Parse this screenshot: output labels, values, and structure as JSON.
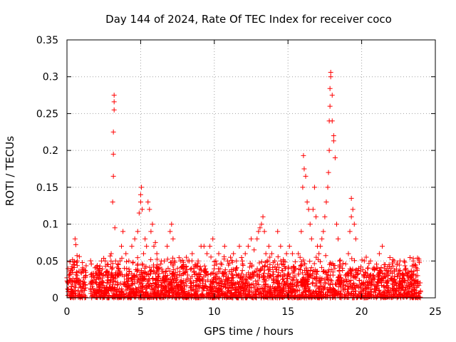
{
  "chart_data": {
    "type": "scatter",
    "title": "Day 144 of 2024, Rate Of TEC Index for receiver coco",
    "xlabel": "GPS time / hours",
    "ylabel": "ROTI / TECUs",
    "xlim": [
      0,
      25
    ],
    "ylim": [
      0,
      0.35
    ],
    "xticks": [
      "0",
      "5",
      "10",
      "15",
      "20",
      "25"
    ],
    "yticks": [
      "0",
      "0.05",
      "0.1",
      "0.15",
      "0.2",
      "0.25",
      "0.3",
      "0.35"
    ],
    "grid": true,
    "marker": "+",
    "color": "#ff0000",
    "series": [
      {
        "name": "ROTI",
        "x": [
          0.05,
          0.1,
          0.15,
          0.2,
          0.3,
          0.5,
          0.55,
          0.6,
          0.7,
          0.8,
          1.0,
          1.1,
          1.2,
          1.6,
          1.8,
          2.0,
          2.2,
          2.4,
          2.6,
          2.8,
          3.0,
          3.1,
          3.15,
          3.15,
          3.15,
          3.2,
          3.2,
          3.2,
          3.25,
          3.3,
          3.5,
          3.6,
          3.7,
          3.8,
          3.9,
          4.0,
          4.2,
          4.4,
          4.6,
          4.8,
          4.9,
          5.0,
          5.0,
          5.05,
          5.1,
          5.2,
          5.3,
          5.4,
          5.5,
          5.6,
          5.7,
          5.8,
          5.9,
          6.0,
          6.1,
          6.2,
          6.4,
          6.6,
          6.8,
          7.0,
          7.1,
          7.2,
          7.3,
          7.5,
          7.7,
          7.9,
          8.1,
          8.3,
          8.5,
          8.7,
          8.9,
          9.1,
          9.3,
          9.5,
          9.7,
          9.9,
          10.1,
          10.3,
          10.5,
          10.7,
          10.9,
          11.1,
          11.3,
          11.5,
          11.7,
          11.9,
          12.1,
          12.3,
          12.5,
          12.7,
          12.9,
          13.0,
          13.1,
          13.2,
          13.3,
          13.4,
          13.5,
          13.7,
          13.9,
          14.1,
          14.3,
          14.5,
          14.7,
          14.9,
          15.1,
          15.3,
          15.5,
          15.7,
          15.9,
          16.0,
          16.05,
          16.1,
          16.2,
          16.3,
          16.4,
          16.5,
          16.6,
          16.7,
          16.8,
          16.9,
          17.0,
          17.1,
          17.2,
          17.3,
          17.4,
          17.5,
          17.6,
          17.7,
          17.75,
          17.8,
          17.8,
          17.85,
          17.85,
          17.9,
          17.9,
          18.0,
          18.0,
          18.1,
          18.1,
          18.2,
          18.3,
          18.4,
          18.5,
          18.7,
          18.9,
          19.1,
          19.2,
          19.3,
          19.3,
          19.4,
          19.5,
          19.6,
          19.8,
          20.0,
          20.2,
          20.4,
          20.6,
          20.8,
          21.0,
          21.2,
          21.4,
          21.6,
          21.8,
          22.0,
          22.2,
          22.4,
          22.6,
          22.8,
          23.0,
          23.2,
          23.4,
          23.5,
          23.6,
          23.7,
          23.8,
          23.9
        ],
        "y": [
          0.012,
          0.02,
          0.03,
          0.035,
          0.015,
          0.045,
          0.08,
          0.072,
          0.05,
          0.02,
          0.008,
          0.02,
          0.01,
          0.02,
          0.03,
          0.025,
          0.04,
          0.03,
          0.05,
          0.045,
          0.06,
          0.13,
          0.165,
          0.195,
          0.225,
          0.255,
          0.266,
          0.275,
          0.095,
          0.05,
          0.04,
          0.05,
          0.07,
          0.09,
          0.04,
          0.06,
          0.05,
          0.07,
          0.08,
          0.09,
          0.115,
          0.13,
          0.14,
          0.15,
          0.12,
          0.06,
          0.08,
          0.07,
          0.13,
          0.12,
          0.09,
          0.1,
          0.07,
          0.075,
          0.06,
          0.04,
          0.05,
          0.05,
          0.07,
          0.09,
          0.1,
          0.08,
          0.05,
          0.04,
          0.05,
          0.04,
          0.055,
          0.05,
          0.06,
          0.045,
          0.05,
          0.07,
          0.07,
          0.06,
          0.07,
          0.08,
          0.05,
          0.06,
          0.045,
          0.07,
          0.05,
          0.055,
          0.06,
          0.05,
          0.07,
          0.05,
          0.06,
          0.07,
          0.08,
          0.065,
          0.08,
          0.09,
          0.095,
          0.1,
          0.11,
          0.09,
          0.06,
          0.07,
          0.06,
          0.05,
          0.09,
          0.07,
          0.05,
          0.06,
          0.07,
          0.06,
          0.04,
          0.06,
          0.09,
          0.15,
          0.193,
          0.175,
          0.165,
          0.13,
          0.12,
          0.1,
          0.08,
          0.12,
          0.15,
          0.11,
          0.07,
          0.06,
          0.07,
          0.08,
          0.09,
          0.11,
          0.13,
          0.15,
          0.17,
          0.2,
          0.24,
          0.26,
          0.284,
          0.3,
          0.306,
          0.275,
          0.24,
          0.213,
          0.22,
          0.19,
          0.1,
          0.08,
          0.05,
          0.04,
          0.03,
          0.06,
          0.09,
          0.11,
          0.135,
          0.12,
          0.1,
          0.08,
          0.04,
          0.02,
          0.03,
          0.04,
          0.05,
          0.03,
          0.04,
          0.06,
          0.07,
          0.045,
          0.03,
          0.04,
          0.05,
          0.045,
          0.05,
          0.03,
          0.04,
          0.035,
          0.03,
          0.05,
          0.045,
          0.03,
          0.02,
          0.05
        ]
      }
    ],
    "background_density": {
      "note": "dense band of low ROTI values across the day",
      "x_range": [
        0,
        24
      ],
      "y_typical_max": 0.045,
      "gap_x": [
        1.3,
        1.6
      ]
    }
  }
}
